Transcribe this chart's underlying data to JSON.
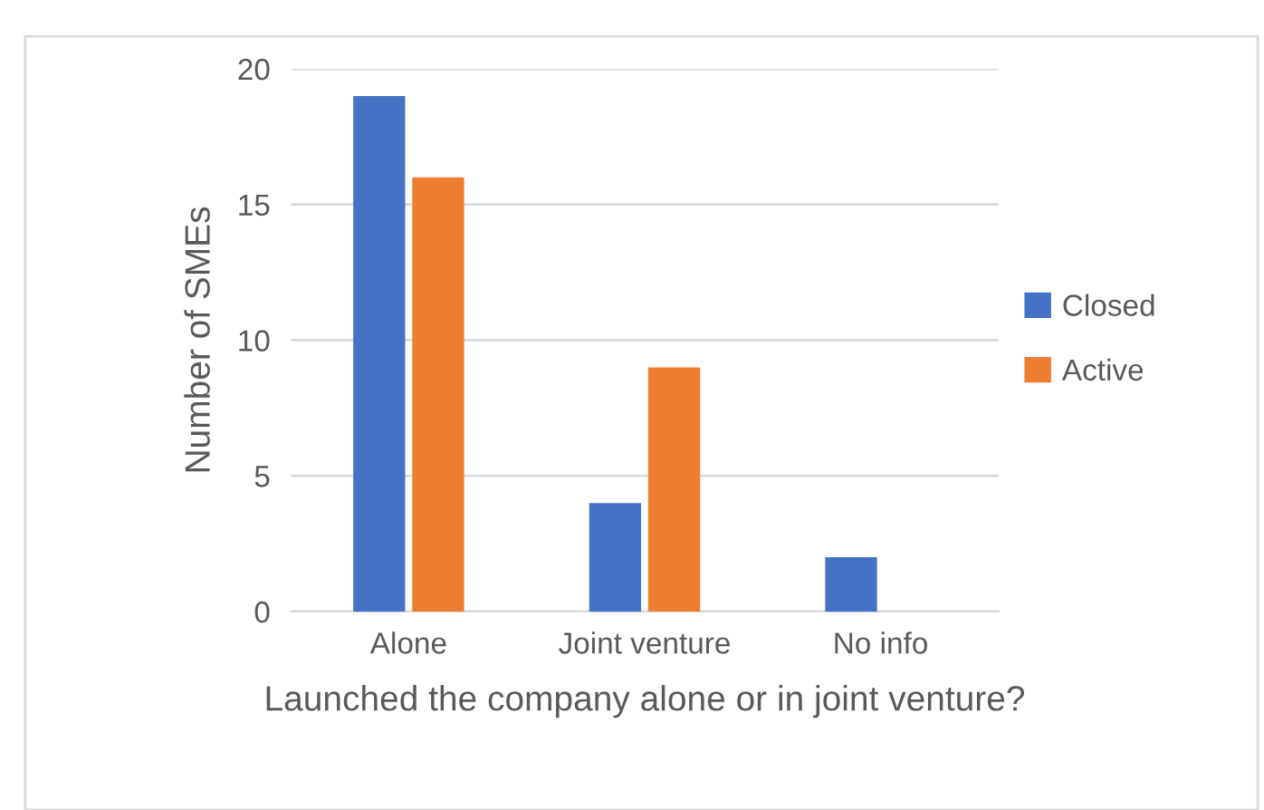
{
  "chart_data": {
    "type": "bar",
    "xlabel": "Launched the company alone or in joint venture?",
    "ylabel": "Number of SMEs",
    "categories": [
      "Alone",
      "Joint venture",
      "No info"
    ],
    "series": [
      {
        "name": "Closed",
        "color": "#4472c4",
        "values": [
          19,
          4,
          2
        ]
      },
      {
        "name": "Active",
        "color": "#ed7d31",
        "values": [
          16,
          9,
          0
        ]
      }
    ],
    "ylim": [
      0,
      20
    ],
    "yticks": [
      0,
      5,
      10,
      15,
      20
    ],
    "grid": "y",
    "legend": "right"
  }
}
